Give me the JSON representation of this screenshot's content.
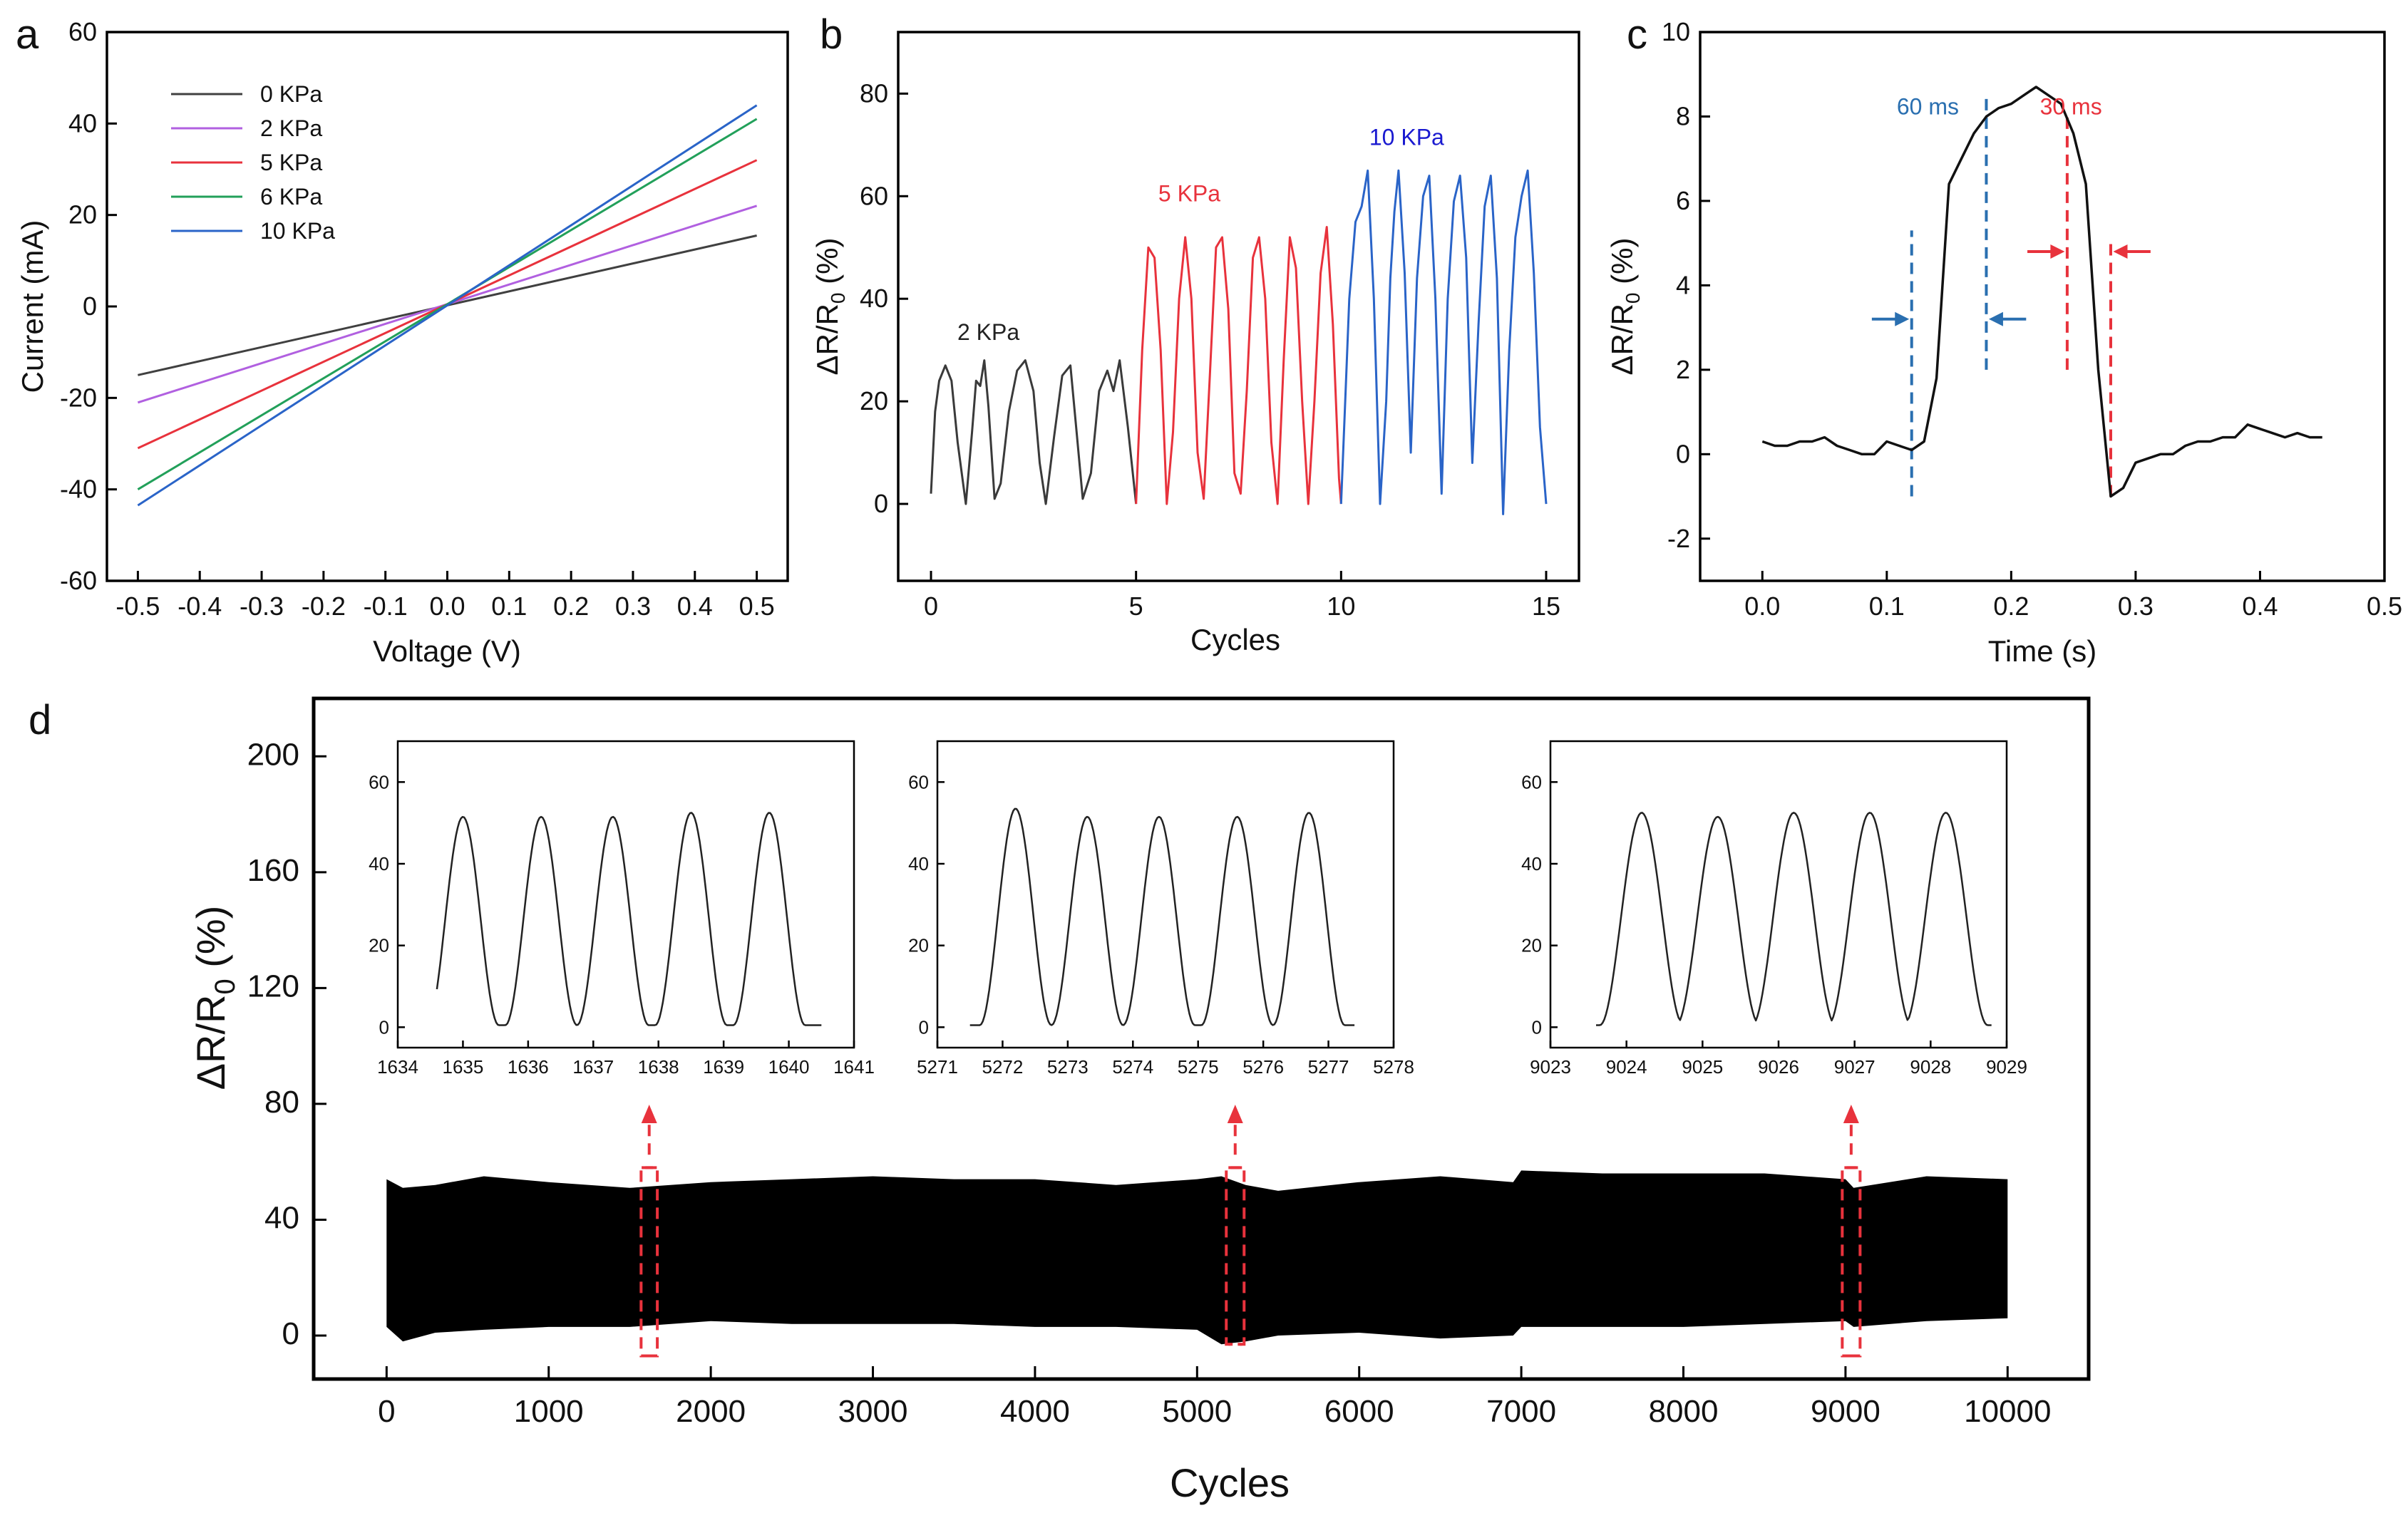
{
  "panels": {
    "a": {
      "letter": "a",
      "chart_data": {
        "type": "line",
        "xlabel": "Voltage (V)",
        "ylabel": "Current (mA)",
        "xlim": [
          -0.55,
          0.55
        ],
        "ylim": [
          -60,
          60
        ],
        "xticks": [
          -0.5,
          -0.4,
          -0.3,
          -0.2,
          -0.1,
          0.0,
          0.1,
          0.2,
          0.3,
          0.4,
          0.5
        ],
        "xtick_labels": [
          "-0.5",
          "-0.4",
          "-0.3",
          "-0.2",
          "-0.1",
          "0.0",
          "0.1",
          "0.2",
          "0.3",
          "0.4",
          "0.5"
        ],
        "yticks": [
          -60,
          -40,
          -20,
          0,
          20,
          40,
          60
        ],
        "ytick_labels": [
          "-60",
          "-40",
          "-20",
          "0",
          "20",
          "40",
          "60"
        ],
        "legend_position": "top-left",
        "series": [
          {
            "name": "0 KPa",
            "color": "#404040",
            "x": [
              -0.5,
              0.5
            ],
            "y": [
              -15,
              15.5
            ]
          },
          {
            "name": "2 KPa",
            "color": "#b160e0",
            "x": [
              -0.5,
              0.5
            ],
            "y": [
              -21,
              22
            ]
          },
          {
            "name": "5 KPa",
            "color": "#e8323c",
            "x": [
              -0.5,
              0.5
            ],
            "y": [
              -31,
              32
            ]
          },
          {
            "name": "6 KPa",
            "color": "#22a05a",
            "x": [
              -0.5,
              0.5
            ],
            "y": [
              -40,
              41
            ]
          },
          {
            "name": "10 KPa",
            "color": "#2a64c8",
            "x": [
              -0.5,
              0.5
            ],
            "y": [
              -43.5,
              44
            ]
          }
        ]
      }
    },
    "b": {
      "letter": "b",
      "chart_data": {
        "type": "line",
        "xlabel": "Cycles",
        "ylabel_main": "ΔR/R",
        "ylabel_sub": "0",
        "ylabel_tail": " (%)",
        "xlim": [
          -0.8,
          15.8
        ],
        "ylim": [
          -15,
          92
        ],
        "xticks": [
          0,
          5,
          10,
          15
        ],
        "xtick_labels": [
          "0",
          "5",
          "10",
          "15"
        ],
        "yticks": [
          0,
          20,
          40,
          60,
          80
        ],
        "ytick_labels": [
          "0",
          "20",
          "40",
          "60",
          "80"
        ],
        "annotations": [
          {
            "text": "2 KPa",
            "color": "#222222",
            "x": 1.4,
            "y": 32
          },
          {
            "text": "5 KPa",
            "color": "#e8323c",
            "x": 6.3,
            "y": 59
          },
          {
            "text": "10 KPa",
            "color": "#1a1ad0",
            "x": 11.6,
            "y": 70
          }
        ],
        "series": [
          {
            "name": "2 KPa",
            "color": "#3a3a3a",
            "x": [
              0,
              0.1,
              0.2,
              0.35,
              0.5,
              0.65,
              0.85,
              1.0,
              1.1,
              1.2,
              1.3,
              1.4,
              1.55,
              1.7,
              1.9,
              2.1,
              2.3,
              2.5,
              2.65,
              2.8,
              3.0,
              3.2,
              3.4,
              3.55,
              3.7,
              3.9,
              4.1,
              4.3,
              4.45,
              4.6,
              4.8,
              5.0
            ],
            "y": [
              2,
              18,
              24,
              27,
              24,
              12,
              0,
              14,
              24,
              23,
              28,
              19,
              1,
              4,
              18,
              26,
              28,
              22,
              8,
              0,
              13,
              25,
              27,
              14,
              1,
              6,
              22,
              26,
              22,
              28,
              15,
              0
            ]
          },
          {
            "name": "5 KPa",
            "color": "#e8323c",
            "x": [
              5.0,
              5.15,
              5.3,
              5.45,
              5.6,
              5.75,
              5.9,
              6.05,
              6.2,
              6.35,
              6.5,
              6.65,
              6.8,
              6.95,
              7.1,
              7.25,
              7.4,
              7.55,
              7.7,
              7.85,
              8.0,
              8.15,
              8.3,
              8.45,
              8.6,
              8.75,
              8.9,
              9.05,
              9.2,
              9.35,
              9.5,
              9.65,
              9.8,
              9.95,
              10.0
            ],
            "y": [
              0,
              30,
              50,
              48,
              30,
              0,
              14,
              40,
              52,
              40,
              10,
              1,
              25,
              50,
              52,
              38,
              6,
              2,
              22,
              48,
              52,
              40,
              12,
              0,
              28,
              52,
              46,
              20,
              0,
              20,
              45,
              54,
              35,
              5,
              0
            ]
          },
          {
            "name": "10 KPa",
            "color": "#2a64c8",
            "x": [
              10.0,
              10.1,
              10.2,
              10.35,
              10.5,
              10.65,
              10.8,
              10.95,
              11.1,
              11.2,
              11.3,
              11.4,
              11.55,
              11.7,
              11.85,
              12.0,
              12.15,
              12.3,
              12.45,
              12.6,
              12.75,
              12.9,
              13.05,
              13.2,
              13.35,
              13.5,
              13.65,
              13.8,
              13.95,
              14.1,
              14.25,
              14.4,
              14.55,
              14.7,
              14.85,
              15.0
            ],
            "y": [
              0,
              20,
              40,
              55,
              58,
              65,
              40,
              0,
              20,
              44,
              57,
              65,
              45,
              10,
              44,
              60,
              64,
              40,
              2,
              40,
              59,
              64,
              48,
              8,
              35,
              58,
              64,
              44,
              -2,
              30,
              52,
              60,
              65,
              45,
              15,
              0
            ]
          }
        ]
      }
    },
    "c": {
      "letter": "c",
      "chart_data": {
        "type": "line",
        "xlabel": "Time (s)",
        "ylabel_main": "ΔR/R",
        "ylabel_sub": "0",
        "ylabel_tail": " (%)",
        "xlim": [
          -0.05,
          0.5
        ],
        "ylim": [
          -3,
          10
        ],
        "xticks": [
          0.0,
          0.1,
          0.2,
          0.3,
          0.4,
          0.5
        ],
        "xtick_labels": [
          "0.0",
          "0.1",
          "0.2",
          "0.3",
          "0.4",
          "0.5"
        ],
        "yticks": [
          -2,
          0,
          2,
          4,
          6,
          8,
          10
        ],
        "ytick_labels": [
          "-2",
          "0",
          "2",
          "4",
          "6",
          "8",
          "10"
        ],
        "annotations": [
          {
            "text": "60 ms",
            "color": "#2a6fb0",
            "x": 0.133,
            "y": 8.05
          },
          {
            "text": "30 ms",
            "color": "#e8323c",
            "x": 0.248,
            "y": 8.05
          }
        ],
        "markers": [
          {
            "kind": "dashed-vline",
            "color": "#2a6fb0",
            "x": 0.12,
            "y_from": -1.0,
            "y_to": 5.3
          },
          {
            "kind": "dashed-vline",
            "color": "#2a6fb0",
            "x": 0.18,
            "y_from": 2.0,
            "y_to": 8.5
          },
          {
            "kind": "dashed-vline",
            "color": "#e8323c",
            "x": 0.245,
            "y_from": 2.0,
            "y_to": 8.0
          },
          {
            "kind": "dashed-vline",
            "color": "#e8323c",
            "x": 0.28,
            "y_from": -1.0,
            "y_to": 5.0
          }
        ],
        "arrows": [
          {
            "color": "#2a6fb0",
            "x_from": 0.088,
            "x_to": 0.118,
            "y": 3.2
          },
          {
            "color": "#2a6fb0",
            "x_from": 0.212,
            "x_to": 0.182,
            "y": 3.2
          },
          {
            "color": "#e8323c",
            "x_from": 0.213,
            "x_to": 0.243,
            "y": 4.8
          },
          {
            "color": "#e8323c",
            "x_from": 0.312,
            "x_to": 0.282,
            "y": 4.8
          }
        ],
        "series": [
          {
            "name": "response",
            "color": "#111111",
            "x": [
              0.0,
              0.01,
              0.02,
              0.03,
              0.04,
              0.05,
              0.06,
              0.07,
              0.08,
              0.09,
              0.1,
              0.11,
              0.12,
              0.13,
              0.14,
              0.15,
              0.16,
              0.17,
              0.18,
              0.19,
              0.2,
              0.21,
              0.22,
              0.23,
              0.24,
              0.25,
              0.26,
              0.27,
              0.28,
              0.29,
              0.3,
              0.31,
              0.32,
              0.33,
              0.34,
              0.35,
              0.36,
              0.37,
              0.38,
              0.39,
              0.4,
              0.41,
              0.42,
              0.43,
              0.44,
              0.45
            ],
            "y": [
              0.3,
              0.2,
              0.2,
              0.3,
              0.3,
              0.4,
              0.2,
              0.1,
              0.0,
              0.0,
              0.3,
              0.2,
              0.1,
              0.3,
              1.8,
              6.4,
              7.0,
              7.6,
              8.0,
              8.2,
              8.3,
              8.5,
              8.7,
              8.5,
              8.3,
              7.6,
              6.4,
              2.0,
              -1.0,
              -0.8,
              -0.2,
              -0.1,
              0.0,
              0.0,
              0.2,
              0.3,
              0.3,
              0.4,
              0.4,
              0.7,
              0.6,
              0.5,
              0.4,
              0.5,
              0.4,
              0.4
            ]
          }
        ]
      }
    },
    "d": {
      "letter": "d",
      "chart_data": {
        "type": "area",
        "xlabel": "Cycles",
        "ylabel_main": "ΔR/R",
        "ylabel_sub": "0",
        "ylabel_tail": " (%)",
        "xlim": [
          -450,
          10500
        ],
        "ylim": [
          -15,
          220
        ],
        "xticks": [
          0,
          1000,
          2000,
          3000,
          4000,
          5000,
          6000,
          7000,
          8000,
          9000,
          10000
        ],
        "xtick_labels": [
          "0",
          "1000",
          "2000",
          "3000",
          "4000",
          "5000",
          "6000",
          "7000",
          "8000",
          "9000",
          "10000"
        ],
        "yticks": [
          0,
          40,
          80,
          120,
          160,
          200
        ],
        "ytick_labels": [
          "0",
          "40",
          "80",
          "120",
          "160",
          "200"
        ],
        "envelope": {
          "x": [
            0,
            100,
            300,
            600,
            1000,
            1500,
            2000,
            2500,
            3000,
            3500,
            4000,
            4500,
            5000,
            5150,
            5300,
            5500,
            6000,
            6500,
            6950,
            7000,
            7500,
            8000,
            8500,
            9000,
            9050,
            9500,
            10000
          ],
          "upper": [
            54,
            51,
            52,
            55,
            53,
            51,
            53,
            54,
            55,
            54,
            54,
            52,
            54,
            55,
            52,
            50,
            53,
            55,
            53,
            57,
            56,
            56,
            56,
            54,
            51,
            55,
            54
          ],
          "lower": [
            3,
            -2,
            1,
            2,
            3,
            3,
            5,
            4,
            4,
            4,
            3,
            3,
            2,
            -3,
            -2,
            0,
            1,
            -1,
            0,
            3,
            3,
            3,
            4,
            5,
            3,
            5,
            6
          ]
        },
        "highlight_boxes": [
          {
            "x_from": 1570,
            "x_to": 1670,
            "y_from": -7,
            "y_to": 58
          },
          {
            "x_from": 5180,
            "x_to": 5290,
            "y_from": -3,
            "y_to": 58
          },
          {
            "x_from": 8980,
            "x_to": 9090,
            "y_from": -7,
            "y_to": 58
          }
        ],
        "insets": [
          {
            "name": "inset-1634",
            "xlim": [
              1634,
              1641
            ],
            "xticks": [
              1634,
              1635,
              1636,
              1637,
              1638,
              1639,
              1640,
              1641
            ],
            "xtick_labels": [
              "1634",
              "1635",
              "1636",
              "1637",
              "1638",
              "1639",
              "1640",
              "1641"
            ],
            "ylim": [
              -5,
              70
            ],
            "yticks": [
              0,
              20,
              40,
              60
            ],
            "ytick_labels": [
              "0",
              "20",
              "40",
              "60"
            ],
            "arrow_from_cycle": 1620,
            "peaks": [
              1635.0,
              1636.2,
              1637.3,
              1638.5,
              1639.7
            ],
            "peak_values": [
              51,
              51,
              51,
              52,
              52
            ],
            "start": 1634.6,
            "end": 1640.5
          },
          {
            "name": "inset-5271",
            "xlim": [
              5271,
              5278
            ],
            "xticks": [
              5271,
              5272,
              5273,
              5274,
              5275,
              5276,
              5277,
              5278
            ],
            "xtick_labels": [
              "5271",
              "5272",
              "5273",
              "5274",
              "5275",
              "5276",
              "5277",
              "5278"
            ],
            "ylim": [
              -5,
              70
            ],
            "yticks": [
              0,
              20,
              40,
              60
            ],
            "ytick_labels": [
              "0",
              "20",
              "40",
              "60"
            ],
            "arrow_from_cycle": 5235,
            "peaks": [
              5272.2,
              5273.3,
              5274.4,
              5275.6,
              5276.7
            ],
            "peak_values": [
              53,
              51,
              51,
              51,
              52
            ],
            "start": 5271.5,
            "end": 5277.4
          },
          {
            "name": "inset-9023",
            "xlim": [
              9023,
              9029
            ],
            "xticks": [
              9023,
              9024,
              9025,
              9026,
              9027,
              9028,
              9029
            ],
            "xtick_labels": [
              "9023",
              "9024",
              "9025",
              "9026",
              "9027",
              "9028",
              "9029"
            ],
            "ylim": [
              -5,
              70
            ],
            "yticks": [
              0,
              20,
              40,
              60
            ],
            "ytick_labels": [
              "0",
              "20",
              "40",
              "60"
            ],
            "arrow_from_cycle": 9035,
            "peaks": [
              9024.2,
              9025.2,
              9026.2,
              9027.2,
              9028.2
            ],
            "peak_values": [
              52,
              51,
              52,
              52,
              52
            ],
            "start": 9023.6,
            "end": 9028.8
          }
        ]
      }
    }
  }
}
